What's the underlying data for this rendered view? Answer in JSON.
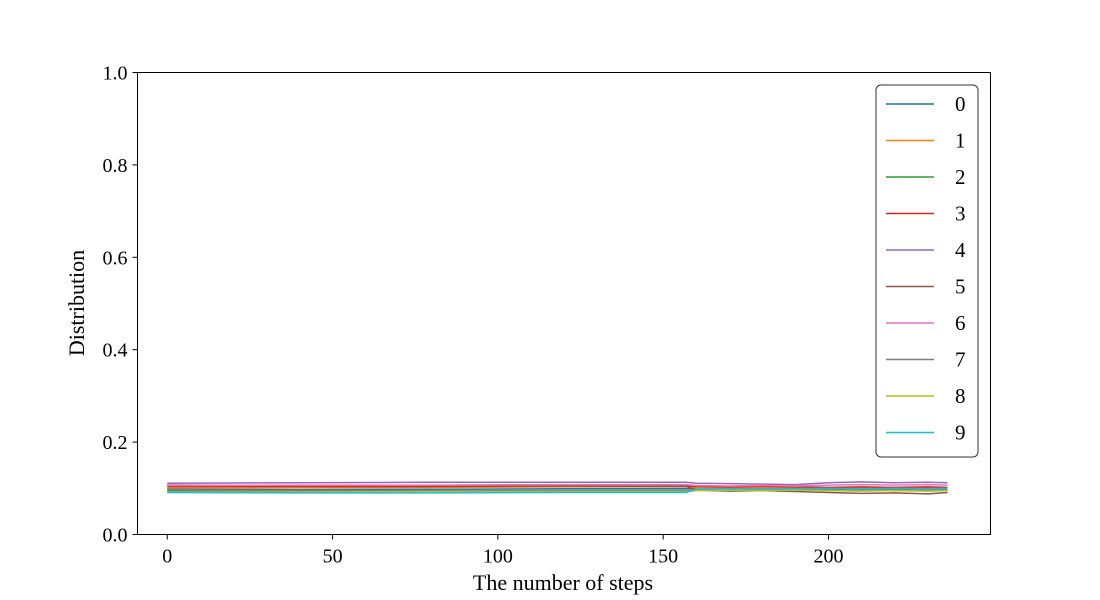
{
  "chart_data": {
    "type": "line",
    "title": "",
    "xlabel": "The number of steps",
    "ylabel": "Distribution",
    "xlim": [
      -9,
      249
    ],
    "ylim": [
      0.0,
      1.0
    ],
    "xticks": [
      0,
      50,
      100,
      150,
      200
    ],
    "xtick_labels": [
      "0",
      "50",
      "100",
      "150",
      "200"
    ],
    "yticks": [
      0.0,
      0.2,
      0.4,
      0.6,
      0.8,
      1.0
    ],
    "ytick_labels": [
      "0.0",
      "0.2",
      "0.4",
      "0.6",
      "0.8",
      "1.0"
    ],
    "grid": false,
    "legend_position": "top-right",
    "x": [
      0,
      40,
      80,
      120,
      157,
      160,
      170,
      180,
      190,
      200,
      210,
      220,
      230,
      236
    ],
    "series": [
      {
        "name": "0",
        "color": "#1f77b4",
        "values": [
          0.098,
          0.097,
          0.098,
          0.099,
          0.099,
          0.1,
          0.101,
          0.1,
          0.1,
          0.101,
          0.102,
          0.101,
          0.102,
          0.101
        ]
      },
      {
        "name": "1",
        "color": "#ff7f0e",
        "values": [
          0.101,
          0.101,
          0.102,
          0.103,
          0.103,
          0.101,
          0.1,
          0.101,
          0.1,
          0.1,
          0.101,
          0.1,
          0.101,
          0.101
        ]
      },
      {
        "name": "2",
        "color": "#2ca02c",
        "values": [
          0.094,
          0.094,
          0.095,
          0.095,
          0.095,
          0.096,
          0.095,
          0.096,
          0.096,
          0.097,
          0.096,
          0.097,
          0.096,
          0.097
        ]
      },
      {
        "name": "3",
        "color": "#d62728",
        "values": [
          0.104,
          0.104,
          0.104,
          0.105,
          0.105,
          0.104,
          0.103,
          0.104,
          0.103,
          0.102,
          0.103,
          0.102,
          0.103,
          0.102
        ]
      },
      {
        "name": "4",
        "color": "#9467bd",
        "values": [
          0.111,
          0.112,
          0.113,
          0.113,
          0.113,
          0.111,
          0.11,
          0.109,
          0.108,
          0.112,
          0.114,
          0.112,
          0.113,
          0.112
        ]
      },
      {
        "name": "5",
        "color": "#8c564b",
        "values": [
          0.107,
          0.106,
          0.106,
          0.105,
          0.104,
          0.096,
          0.094,
          0.095,
          0.093,
          0.091,
          0.089,
          0.09,
          0.088,
          0.091
        ]
      },
      {
        "name": "6",
        "color": "#e377c2",
        "values": [
          0.106,
          0.107,
          0.107,
          0.108,
          0.108,
          0.106,
          0.105,
          0.106,
          0.105,
          0.107,
          0.108,
          0.107,
          0.108,
          0.107
        ]
      },
      {
        "name": "7",
        "color": "#7f7f7f",
        "values": [
          0.096,
          0.095,
          0.095,
          0.095,
          0.095,
          0.097,
          0.098,
          0.097,
          0.098,
          0.097,
          0.096,
          0.097,
          0.096,
          0.097
        ]
      },
      {
        "name": "8",
        "color": "#bcbd22",
        "values": [
          0.092,
          0.092,
          0.093,
          0.093,
          0.093,
          0.095,
          0.096,
          0.095,
          0.096,
          0.095,
          0.094,
          0.095,
          0.094,
          0.095
        ]
      },
      {
        "name": "9",
        "color": "#17becf",
        "values": [
          0.091,
          0.09,
          0.09,
          0.091,
          0.091,
          0.098,
          0.099,
          0.098,
          0.099,
          0.1,
          0.099,
          0.1,
          0.099,
          0.1
        ]
      }
    ]
  }
}
